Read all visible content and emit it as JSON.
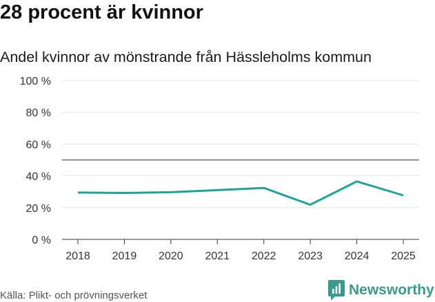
{
  "title": "28 procent är kvinnor",
  "subtitle": "Andel kvinnor av mönstrande från Hässleholms kommun",
  "source": "Källa: Plikt- och prövningsverket",
  "brand": {
    "name": "Newsworthy",
    "icon": "newsworthy-logo-icon",
    "color": "#3a9a8e"
  },
  "chart_data": {
    "type": "line",
    "x": [
      "2018",
      "2019",
      "2020",
      "2021",
      "2022",
      "2023",
      "2024",
      "2025"
    ],
    "series": [
      {
        "values": [
          29.5,
          29.2,
          29.7,
          31.0,
          32.4,
          21.8,
          36.5,
          27.7
        ],
        "color": "#1aa596"
      }
    ],
    "yticks": [
      {
        "value": 0,
        "label": "0 %"
      },
      {
        "value": 20,
        "label": "20 %"
      },
      {
        "value": 40,
        "label": "40 %"
      },
      {
        "value": 60,
        "label": "60 %"
      },
      {
        "value": 80,
        "label": "80 %"
      },
      {
        "value": 100,
        "label": "100 %"
      }
    ],
    "ylim": [
      0,
      100
    ],
    "reference_line": 50,
    "grid": true,
    "legend": "none"
  }
}
